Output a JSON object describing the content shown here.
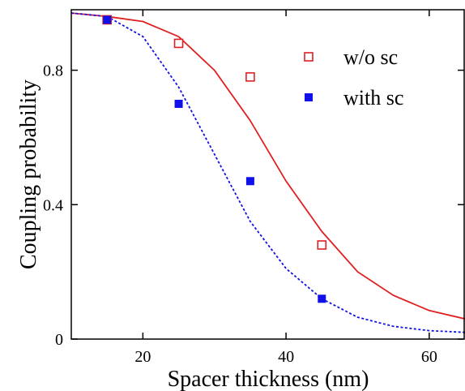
{
  "chart_data": {
    "type": "scatter",
    "title": "",
    "xlabel": "Spacer thickness (nm)",
    "ylabel": "Coupling probability",
    "xlim": [
      10,
      65
    ],
    "ylim": [
      0,
      0.98
    ],
    "x_ticks": [
      20,
      40,
      60
    ],
    "x_tick_labels": [
      "20",
      "40",
      "60"
    ],
    "y_ticks": [
      0,
      0.4,
      0.8
    ],
    "y_tick_labels": [
      "0",
      "0.4",
      "0.8"
    ],
    "grid": false,
    "legend_position": "top-right",
    "series": [
      {
        "name": "w/o sc",
        "marker": "open-square",
        "color": "#e02020",
        "x": [
          15,
          25,
          35,
          45
        ],
        "y": [
          0.95,
          0.88,
          0.78,
          0.28
        ]
      },
      {
        "name": "with sc",
        "marker": "filled-square",
        "color": "#1010e8",
        "x": [
          15,
          25,
          35,
          45
        ],
        "y": [
          0.95,
          0.7,
          0.47,
          0.12
        ]
      }
    ],
    "curves": [
      {
        "style": "solid",
        "color": "#e02020",
        "x": [
          10,
          15,
          20,
          25,
          30,
          35,
          40,
          45,
          50,
          55,
          60,
          65
        ],
        "y": [
          0.97,
          0.96,
          0.945,
          0.9,
          0.8,
          0.65,
          0.47,
          0.32,
          0.2,
          0.13,
          0.085,
          0.06
        ]
      },
      {
        "style": "dotted",
        "color": "#1010e8",
        "x": [
          10,
          15,
          20,
          25,
          30,
          35,
          40,
          45,
          50,
          55,
          60,
          65
        ],
        "y": [
          0.97,
          0.96,
          0.9,
          0.75,
          0.55,
          0.35,
          0.21,
          0.12,
          0.065,
          0.038,
          0.025,
          0.02
        ]
      }
    ]
  }
}
